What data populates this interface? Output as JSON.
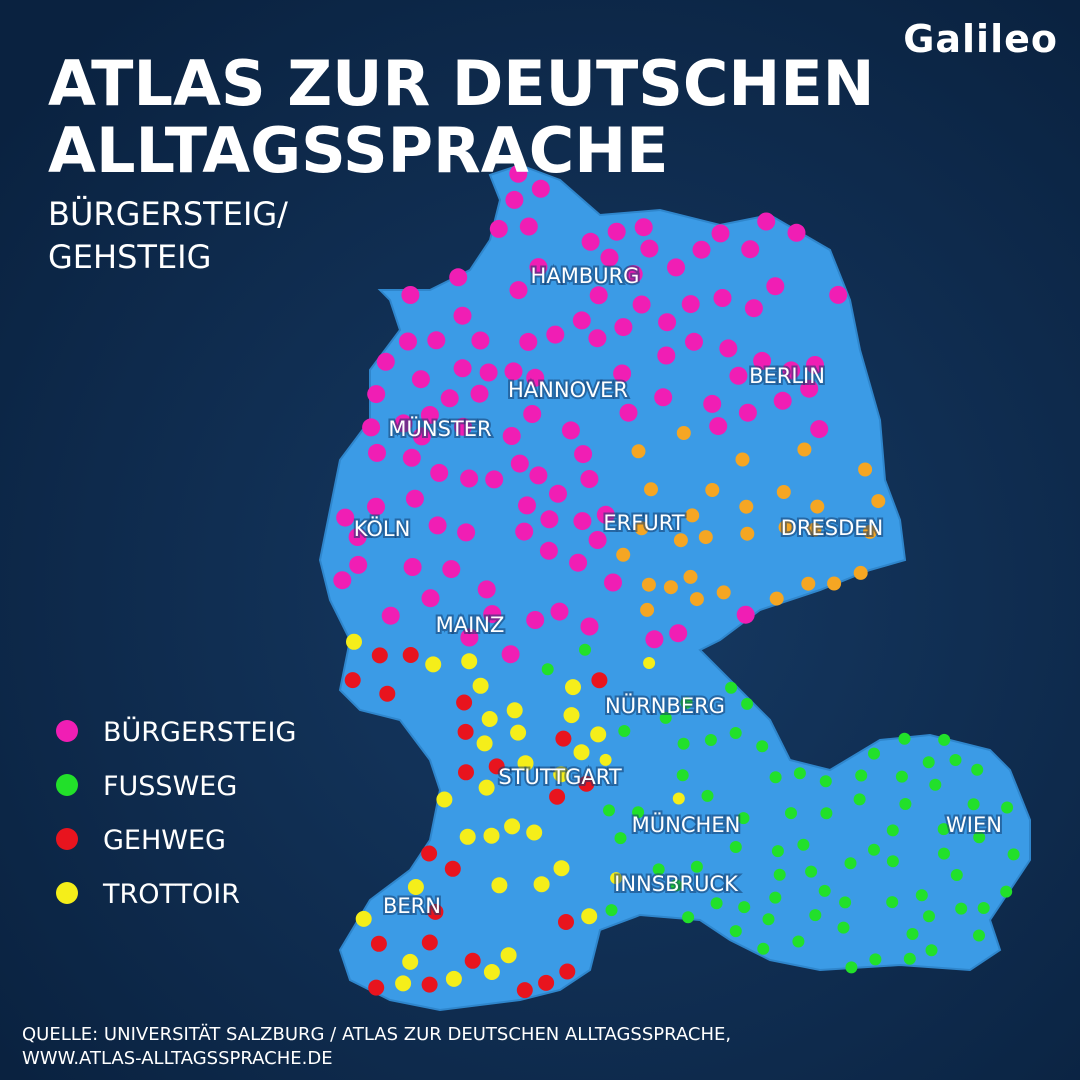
{
  "logo": "Galileo",
  "title_lines": [
    "ATLAS ZUR DEUTSCHEN",
    "ALLTAGSSPRACHE"
  ],
  "subtitle_lines": [
    "BÜRGERSTEIG/",
    "GEHSTEIG"
  ],
  "cities": [
    "HAMBURG",
    "HANNOVER",
    "BERLIN",
    "MÜNSTER",
    "KÖLN",
    "ERFURT",
    "DRESDEN",
    "MAINZ",
    "NÜRNBERG",
    "STUTTGART",
    "MÜNCHEN",
    "WIEN",
    "INNSBRUCK",
    "BERN"
  ],
  "legend": [
    {
      "label": "BÜRGERSTEIG",
      "color": "#f01eb4"
    },
    {
      "label": "FUSSWEG",
      "color": "#22e02a"
    },
    {
      "label": "GEHWEG",
      "color": "#e8141e"
    },
    {
      "label": "TROTTOIR",
      "color": "#f5ee1a"
    }
  ],
  "source_lines": [
    "QUELLE: UNIVERSITÄT SALZBURG / ATLAS ZUR DEUTSCHEN ALLTAGSSPRACHE,",
    "WWW.ATLAS-ALLTAGSSPRACHE.DE"
  ]
}
